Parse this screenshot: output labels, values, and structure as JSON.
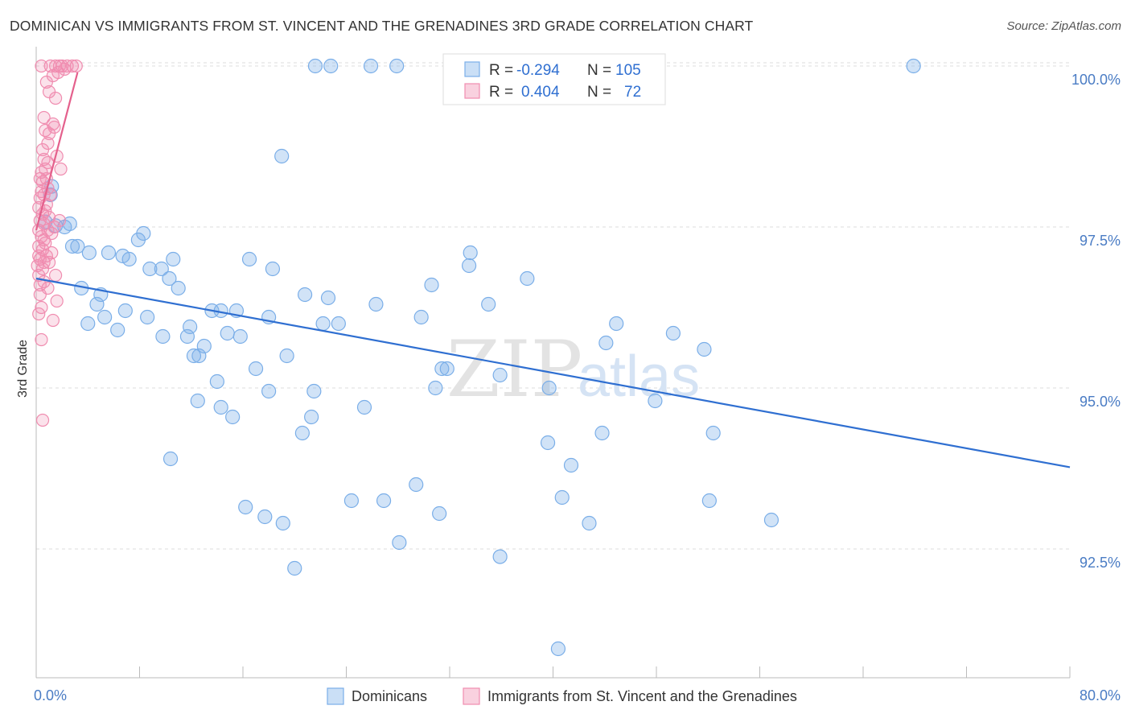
{
  "header": {
    "title": "DOMINICAN VS IMMIGRANTS FROM ST. VINCENT AND THE GRENADINES 3RD GRADE CORRELATION CHART",
    "source": "Source: ZipAtlas.com"
  },
  "watermark": {
    "zip": "ZIP",
    "atlas": "atlas"
  },
  "legend": {
    "rows": [
      {
        "r_label": "R =",
        "r_value": "-0.294",
        "n_label": "N =",
        "n_value": "105",
        "color": "#7aaee8"
      },
      {
        "r_label": "R =",
        "r_value": "0.404",
        "n_label": "N =",
        "n_value": "72",
        "color": "#f08db0"
      }
    ]
  },
  "bottom_legend": {
    "items": [
      {
        "label": "Dominicans",
        "color": "#7aaee8"
      },
      {
        "label": "Immigrants from St. Vincent and the Grenadines",
        "color": "#f08db0"
      }
    ]
  },
  "chart_data": {
    "type": "scatter",
    "title": "DOMINICAN VS IMMIGRANTS FROM ST. VINCENT AND THE GRENADINES 3RD GRADE CORRELATION CHART",
    "xlabel": "",
    "ylabel": "3rd Grade",
    "xlim": [
      0,
      80
    ],
    "ylim": [
      90.5,
      100.3
    ],
    "x_tick_labels": [
      "0.0%",
      "80.0%"
    ],
    "y_ticks": [
      100.0,
      97.5,
      95.0,
      92.5
    ],
    "y_tick_labels": [
      "100.0%",
      "97.5%",
      "95.0%",
      "92.5%"
    ],
    "grid": true,
    "legend_position": "top-center",
    "series": [
      {
        "name": "Dominicans",
        "color": "#7aaee8",
        "trend_color": "#2f6fd1",
        "trend": {
          "x": [
            0,
            80
          ],
          "y": [
            96.7,
            93.77
          ]
        },
        "points": [
          [
            21.6,
            100.0
          ],
          [
            22.8,
            100.0
          ],
          [
            25.9,
            100.0
          ],
          [
            27.9,
            100.0
          ],
          [
            67.9,
            100.0
          ],
          [
            32.2,
            100.0
          ],
          [
            19.0,
            98.6
          ],
          [
            1.2,
            98.13
          ],
          [
            1.1,
            98.0
          ],
          [
            2.6,
            97.55
          ],
          [
            1.5,
            97.52
          ],
          [
            2.2,
            97.5
          ],
          [
            0.7,
            97.58
          ],
          [
            8.3,
            97.4
          ],
          [
            7.9,
            97.3
          ],
          [
            2.8,
            97.2
          ],
          [
            3.2,
            97.2
          ],
          [
            4.1,
            97.1
          ],
          [
            5.6,
            97.1
          ],
          [
            6.7,
            97.05
          ],
          [
            7.2,
            97.0
          ],
          [
            10.6,
            97.0
          ],
          [
            16.5,
            97.0
          ],
          [
            8.8,
            96.85
          ],
          [
            9.7,
            96.85
          ],
          [
            18.3,
            96.85
          ],
          [
            33.6,
            97.1
          ],
          [
            33.5,
            96.9
          ],
          [
            10.3,
            96.7
          ],
          [
            11.0,
            96.55
          ],
          [
            30.6,
            96.6
          ],
          [
            38.0,
            96.7
          ],
          [
            3.5,
            96.55
          ],
          [
            5.0,
            96.45
          ],
          [
            20.8,
            96.45
          ],
          [
            22.6,
            96.4
          ],
          [
            4.7,
            96.3
          ],
          [
            6.9,
            96.2
          ],
          [
            15.5,
            96.2
          ],
          [
            26.3,
            96.3
          ],
          [
            35.0,
            96.3
          ],
          [
            13.6,
            96.2
          ],
          [
            14.3,
            96.2
          ],
          [
            5.3,
            96.1
          ],
          [
            8.6,
            96.1
          ],
          [
            18.0,
            96.1
          ],
          [
            29.8,
            96.1
          ],
          [
            4.0,
            96.0
          ],
          [
            6.3,
            95.9
          ],
          [
            11.9,
            95.95
          ],
          [
            22.2,
            96.0
          ],
          [
            23.4,
            96.0
          ],
          [
            44.9,
            96.0
          ],
          [
            49.3,
            95.85
          ],
          [
            9.8,
            95.8
          ],
          [
            11.7,
            95.8
          ],
          [
            14.8,
            95.85
          ],
          [
            15.8,
            95.8
          ],
          [
            13.0,
            95.65
          ],
          [
            44.1,
            95.7
          ],
          [
            51.7,
            95.6
          ],
          [
            12.2,
            95.5
          ],
          [
            12.6,
            95.5
          ],
          [
            19.4,
            95.5
          ],
          [
            17.0,
            95.3
          ],
          [
            31.4,
            95.3
          ],
          [
            31.8,
            95.3
          ],
          [
            35.9,
            95.2
          ],
          [
            14.0,
            95.1
          ],
          [
            30.9,
            95.0
          ],
          [
            39.7,
            95.0
          ],
          [
            18.0,
            94.95
          ],
          [
            21.5,
            94.95
          ],
          [
            12.5,
            94.8
          ],
          [
            47.9,
            94.8
          ],
          [
            14.3,
            94.7
          ],
          [
            25.4,
            94.7
          ],
          [
            15.2,
            94.55
          ],
          [
            21.3,
            94.55
          ],
          [
            20.6,
            94.3
          ],
          [
            43.8,
            94.3
          ],
          [
            52.4,
            94.3
          ],
          [
            39.6,
            94.15
          ],
          [
            10.4,
            93.9
          ],
          [
            41.4,
            93.8
          ],
          [
            29.4,
            93.5
          ],
          [
            40.7,
            93.3
          ],
          [
            24.4,
            93.25
          ],
          [
            26.9,
            93.25
          ],
          [
            52.1,
            93.25
          ],
          [
            16.2,
            93.15
          ],
          [
            17.7,
            93.0
          ],
          [
            31.2,
            93.05
          ],
          [
            56.9,
            92.95
          ],
          [
            19.1,
            92.9
          ],
          [
            42.8,
            92.9
          ],
          [
            28.1,
            92.6
          ],
          [
            35.9,
            92.38
          ],
          [
            20.0,
            92.2
          ],
          [
            40.4,
            90.95
          ]
        ]
      },
      {
        "name": "Immigrants from St. Vincent and the Grenadines",
        "color": "#f08db0",
        "trend_color": "#e4608c",
        "trend": {
          "x": [
            0,
            3.2
          ],
          "y": [
            97.45,
            99.9
          ]
        },
        "points": [
          [
            0.4,
            100.0
          ],
          [
            1.1,
            100.0
          ],
          [
            1.5,
            100.0
          ],
          [
            1.8,
            100.0
          ],
          [
            2.0,
            100.0
          ],
          [
            2.4,
            100.0
          ],
          [
            2.8,
            100.0
          ],
          [
            3.1,
            100.0
          ],
          [
            1.3,
            99.85
          ],
          [
            0.8,
            99.75
          ],
          [
            1.0,
            99.6
          ],
          [
            1.5,
            99.5
          ],
          [
            0.6,
            99.2
          ],
          [
            1.3,
            99.1
          ],
          [
            0.7,
            99.0
          ],
          [
            1.0,
            98.95
          ],
          [
            0.5,
            98.7
          ],
          [
            0.6,
            98.55
          ],
          [
            0.9,
            98.5
          ],
          [
            0.7,
            98.4
          ],
          [
            1.9,
            98.4
          ],
          [
            0.3,
            98.25
          ],
          [
            0.5,
            98.2
          ],
          [
            0.9,
            98.1
          ],
          [
            0.4,
            98.05
          ],
          [
            0.6,
            98.0
          ],
          [
            0.3,
            97.95
          ],
          [
            0.8,
            97.85
          ],
          [
            0.2,
            97.8
          ],
          [
            0.5,
            97.7
          ],
          [
            1.0,
            97.65
          ],
          [
            0.3,
            97.6
          ],
          [
            0.6,
            97.55
          ],
          [
            1.4,
            97.5
          ],
          [
            0.2,
            97.45
          ],
          [
            1.2,
            97.4
          ],
          [
            0.4,
            97.35
          ],
          [
            0.7,
            97.25
          ],
          [
            0.2,
            97.2
          ],
          [
            0.5,
            97.15
          ],
          [
            1.2,
            97.1
          ],
          [
            0.8,
            97.05
          ],
          [
            0.3,
            97.0
          ],
          [
            1.0,
            96.95
          ],
          [
            0.1,
            96.9
          ],
          [
            0.5,
            96.85
          ],
          [
            1.5,
            96.75
          ],
          [
            0.2,
            96.75
          ],
          [
            0.6,
            96.65
          ],
          [
            0.9,
            96.55
          ],
          [
            0.3,
            96.45
          ],
          [
            1.6,
            96.35
          ],
          [
            0.4,
            96.25
          ],
          [
            0.2,
            96.15
          ],
          [
            1.3,
            96.05
          ],
          [
            0.4,
            95.75
          ],
          [
            0.5,
            94.5
          ],
          [
            1.7,
            99.9
          ],
          [
            2.2,
            99.95
          ],
          [
            0.9,
            98.8
          ],
          [
            1.6,
            98.6
          ],
          [
            0.6,
            97.3
          ],
          [
            1.1,
            98.0
          ],
          [
            0.3,
            96.6
          ],
          [
            0.7,
            97.75
          ],
          [
            0.4,
            98.35
          ],
          [
            1.8,
            97.6
          ],
          [
            0.9,
            97.45
          ],
          [
            0.2,
            97.05
          ],
          [
            0.6,
            96.95
          ],
          [
            1.4,
            99.05
          ],
          [
            0.8,
            98.25
          ]
        ]
      }
    ]
  }
}
